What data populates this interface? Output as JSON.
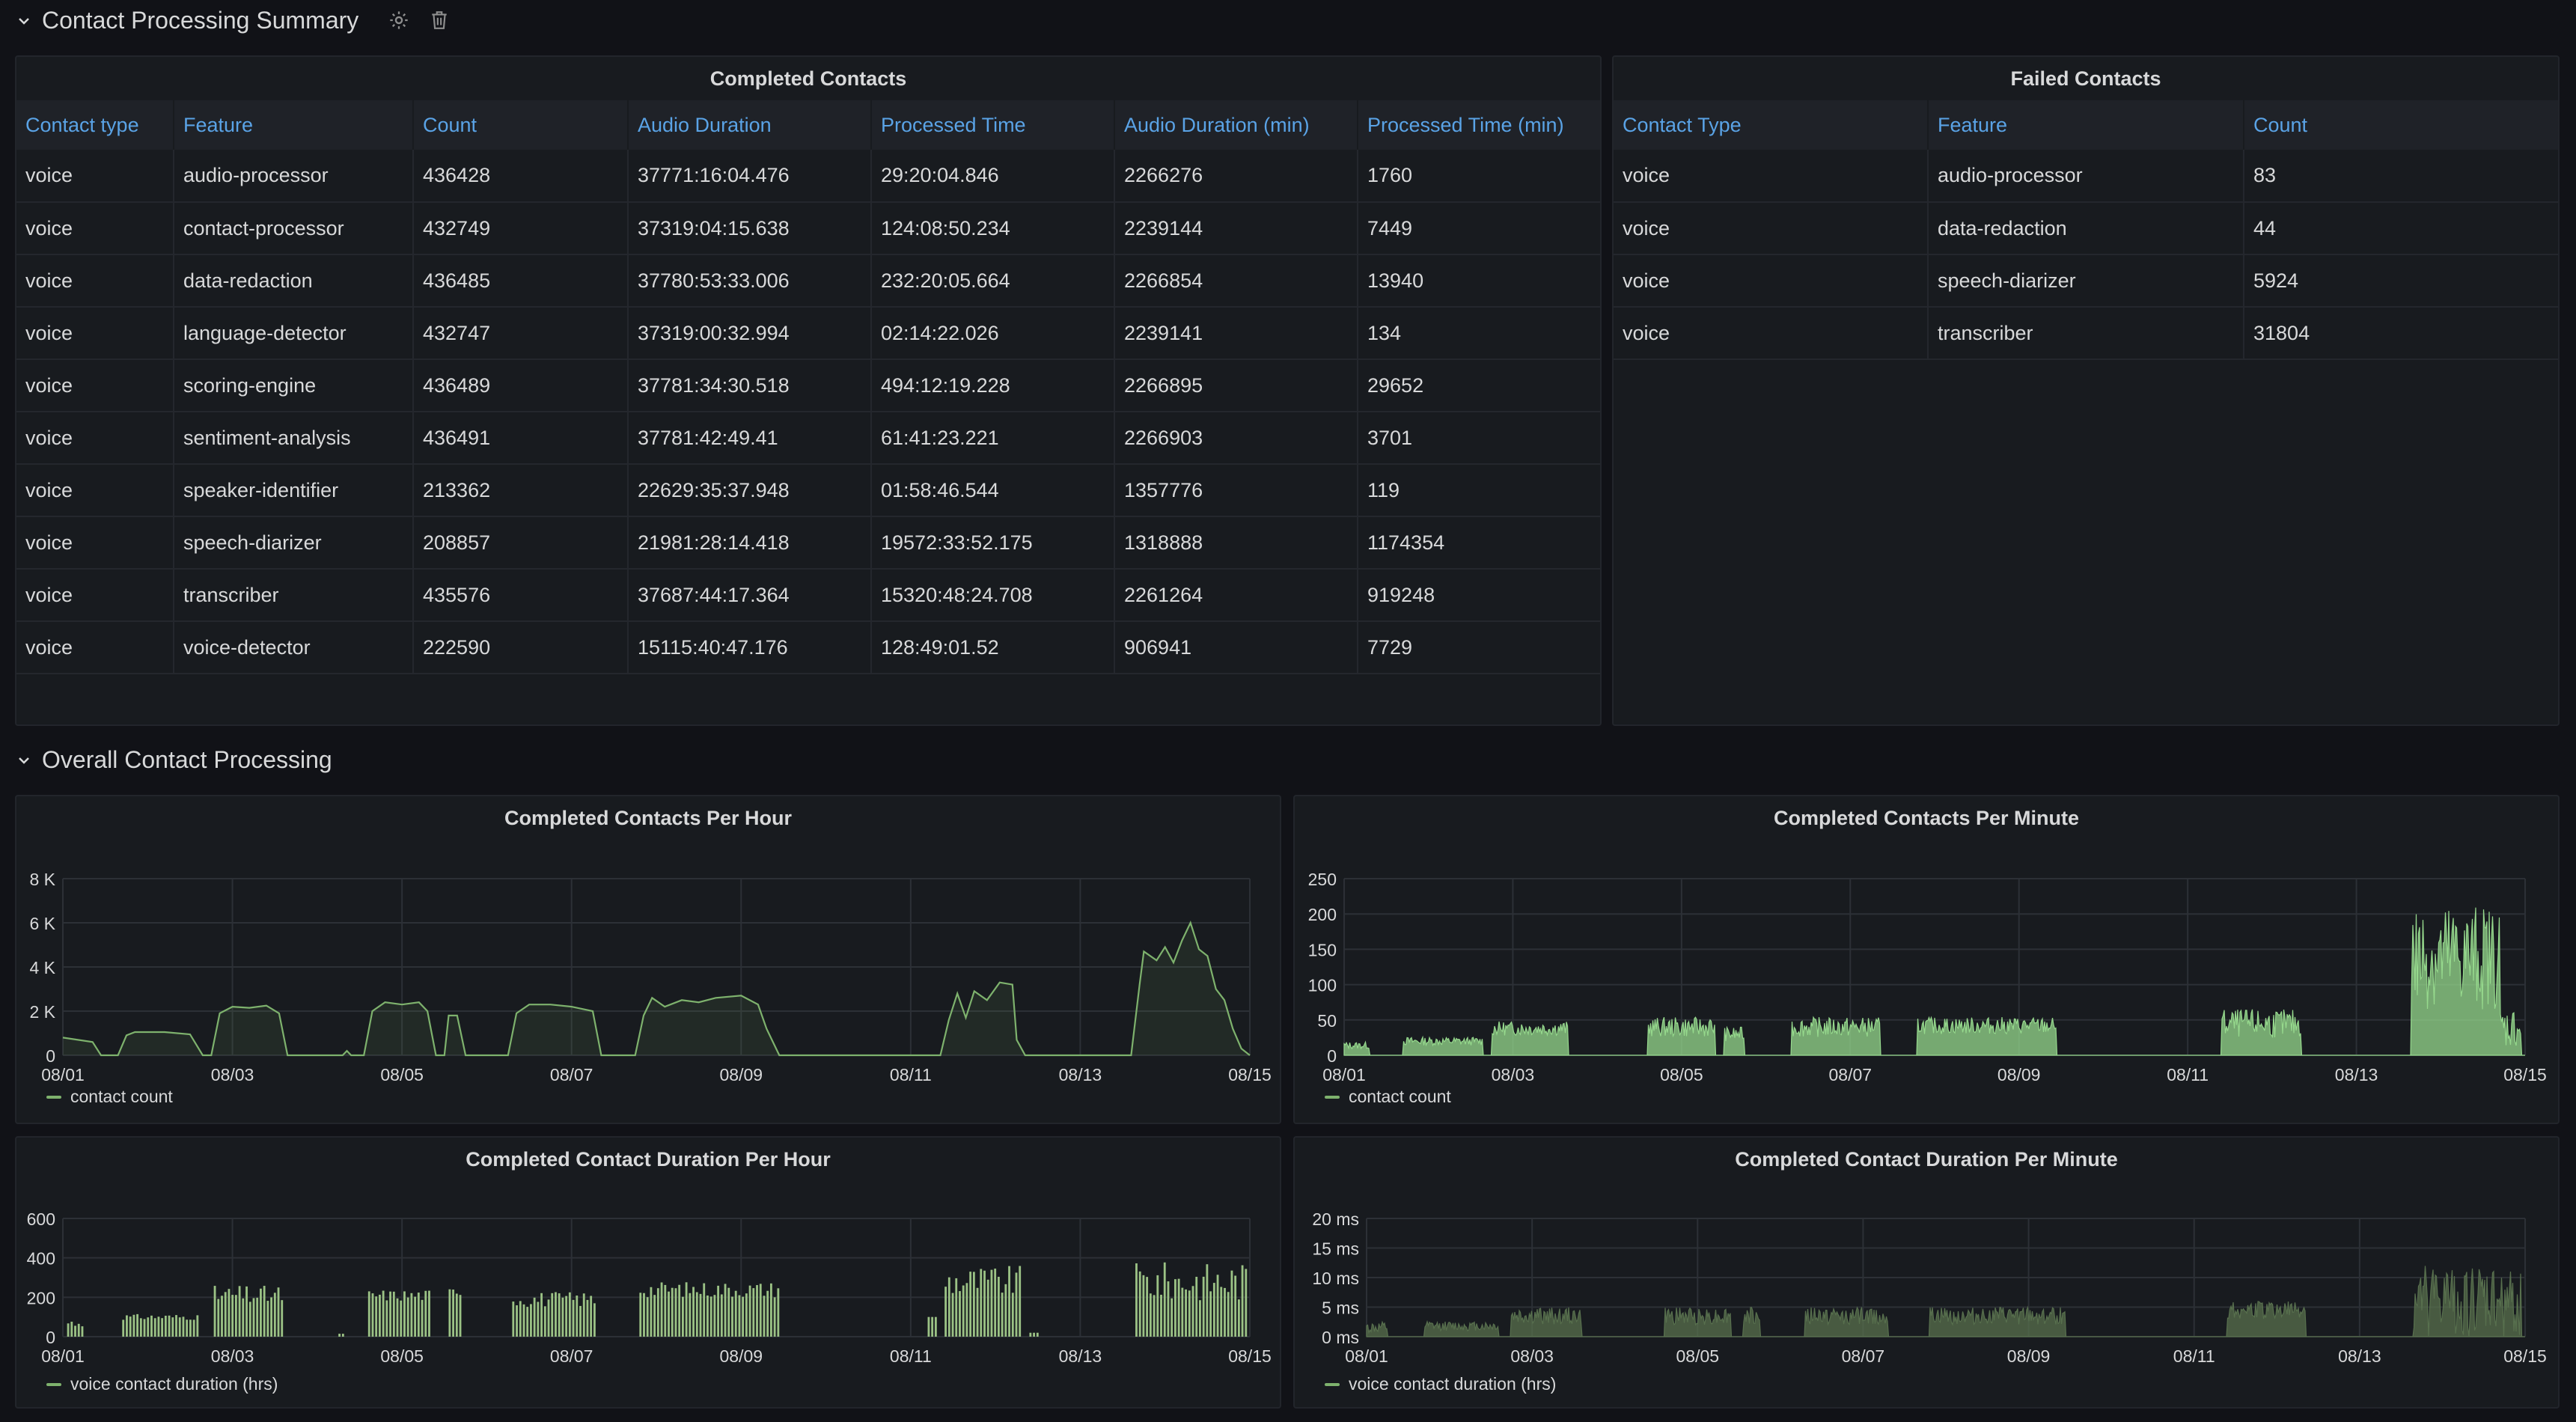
{
  "sections": {
    "summary_title": "Contact Processing Summary",
    "overall_title": "Overall Contact Processing"
  },
  "completed": {
    "title": "Completed Contacts",
    "headers": [
      "Contact type",
      "Feature",
      "Count",
      "Audio Duration",
      "Processed Time",
      "Audio Duration (min)",
      "Processed Time (min)"
    ],
    "rows": [
      [
        "voice",
        "audio-processor",
        "436428",
        "37771:16:04.476",
        "29:20:04.846",
        "2266276",
        "1760"
      ],
      [
        "voice",
        "contact-processor",
        "432749",
        "37319:04:15.638",
        "124:08:50.234",
        "2239144",
        "7449"
      ],
      [
        "voice",
        "data-redaction",
        "436485",
        "37780:53:33.006",
        "232:20:05.664",
        "2266854",
        "13940"
      ],
      [
        "voice",
        "language-detector",
        "432747",
        "37319:00:32.994",
        "02:14:22.026",
        "2239141",
        "134"
      ],
      [
        "voice",
        "scoring-engine",
        "436489",
        "37781:34:30.518",
        "494:12:19.228",
        "2266895",
        "29652"
      ],
      [
        "voice",
        "sentiment-analysis",
        "436491",
        "37781:42:49.41",
        "61:41:23.221",
        "2266903",
        "3701"
      ],
      [
        "voice",
        "speaker-identifier",
        "213362",
        "22629:35:37.948",
        "01:58:46.544",
        "1357776",
        "119"
      ],
      [
        "voice",
        "speech-diarizer",
        "208857",
        "21981:28:14.418",
        "19572:33:52.175",
        "1318888",
        "1174354"
      ],
      [
        "voice",
        "transcriber",
        "435576",
        "37687:44:17.364",
        "15320:48:24.708",
        "2261264",
        "919248"
      ],
      [
        "voice",
        "voice-detector",
        "222590",
        "15115:40:47.176",
        "128:49:01.52",
        "906941",
        "7729"
      ]
    ]
  },
  "failed": {
    "title": "Failed Contacts",
    "headers": [
      "Contact Type",
      "Feature",
      "Count"
    ],
    "rows": [
      [
        "voice",
        "audio-processor",
        "83"
      ],
      [
        "voice",
        "data-redaction",
        "44"
      ],
      [
        "voice",
        "speech-diarizer",
        "5924"
      ],
      [
        "voice",
        "transcriber",
        "31804"
      ]
    ]
  },
  "chart_data": [
    {
      "id": "cph",
      "type": "area",
      "title": "Completed Contacts Per Hour",
      "legend": "contact count",
      "ylim": [
        0,
        8000
      ],
      "yticks": [
        0,
        2000,
        4000,
        6000,
        8000
      ],
      "ytick_labels": [
        "0",
        "2 K",
        "4 K",
        "6 K",
        "8 K"
      ],
      "x_labels": [
        "08/01",
        "08/03",
        "08/05",
        "08/07",
        "08/09",
        "08/11",
        "08/13",
        "08/15"
      ],
      "xlim": [
        0,
        14
      ],
      "color": "#7eb26d",
      "points": [
        [
          0,
          800
        ],
        [
          0.35,
          600
        ],
        [
          0.45,
          0
        ],
        [
          0.65,
          0
        ],
        [
          0.75,
          900
        ],
        [
          0.85,
          1050
        ],
        [
          1.2,
          1050
        ],
        [
          1.5,
          950
        ],
        [
          1.65,
          0
        ],
        [
          1.75,
          0
        ],
        [
          1.85,
          1900
        ],
        [
          2.0,
          2200
        ],
        [
          2.2,
          2150
        ],
        [
          2.4,
          2250
        ],
        [
          2.55,
          1900
        ],
        [
          2.65,
          0
        ],
        [
          3.3,
          0
        ],
        [
          3.35,
          200
        ],
        [
          3.4,
          0
        ],
        [
          3.55,
          0
        ],
        [
          3.65,
          2000
        ],
        [
          3.8,
          2400
        ],
        [
          4.0,
          2300
        ],
        [
          4.2,
          2400
        ],
        [
          4.3,
          2000
        ],
        [
          4.4,
          0
        ],
        [
          4.5,
          0
        ],
        [
          4.55,
          1800
        ],
        [
          4.65,
          1800
        ],
        [
          4.75,
          0
        ],
        [
          5.25,
          0
        ],
        [
          5.35,
          1900
        ],
        [
          5.5,
          2300
        ],
        [
          5.75,
          2300
        ],
        [
          6.0,
          2200
        ],
        [
          6.25,
          2000
        ],
        [
          6.35,
          0
        ],
        [
          6.75,
          0
        ],
        [
          6.85,
          1800
        ],
        [
          6.95,
          2600
        ],
        [
          7.1,
          2200
        ],
        [
          7.3,
          2500
        ],
        [
          7.5,
          2400
        ],
        [
          7.7,
          2600
        ],
        [
          8.0,
          2700
        ],
        [
          8.2,
          2300
        ],
        [
          8.3,
          1200
        ],
        [
          8.45,
          0
        ],
        [
          10.35,
          0
        ],
        [
          10.45,
          1600
        ],
        [
          10.55,
          2800
        ],
        [
          10.65,
          1700
        ],
        [
          10.75,
          2900
        ],
        [
          10.9,
          2500
        ],
        [
          11.05,
          3300
        ],
        [
          11.2,
          3200
        ],
        [
          11.25,
          700
        ],
        [
          11.35,
          0
        ],
        [
          12.6,
          0
        ],
        [
          12.7,
          3200
        ],
        [
          12.75,
          4700
        ],
        [
          12.9,
          4300
        ],
        [
          13.0,
          4900
        ],
        [
          13.1,
          4200
        ],
        [
          13.2,
          5200
        ],
        [
          13.3,
          6000
        ],
        [
          13.4,
          4800
        ],
        [
          13.5,
          4500
        ],
        [
          13.6,
          3000
        ],
        [
          13.7,
          2500
        ],
        [
          13.8,
          1200
        ],
        [
          13.9,
          300
        ],
        [
          14,
          0
        ]
      ]
    },
    {
      "id": "cpm",
      "type": "area",
      "title": "Completed Contacts Per Minute",
      "legend": "contact count",
      "ylim": [
        0,
        250
      ],
      "yticks": [
        0,
        50,
        100,
        150,
        200,
        250
      ],
      "ytick_labels": [
        "0",
        "50",
        "100",
        "150",
        "200",
        "250"
      ],
      "x_labels": [
        "08/01",
        "08/03",
        "08/05",
        "08/07",
        "08/09",
        "08/11",
        "08/13",
        "08/15"
      ],
      "xlim": [
        0,
        14
      ],
      "color": "#96d98d",
      "noisy": true,
      "segments": [
        [
          0,
          0.3,
          14,
          5
        ],
        [
          0.7,
          1.65,
          20,
          6
        ],
        [
          1.75,
          2.65,
          38,
          10
        ],
        [
          3.6,
          4.4,
          40,
          14
        ],
        [
          4.5,
          4.75,
          30,
          10
        ],
        [
          5.3,
          6.35,
          40,
          14
        ],
        [
          6.8,
          8.45,
          42,
          12
        ],
        [
          10.4,
          11.35,
          45,
          20
        ],
        [
          12.65,
          13.7,
          140,
          75
        ],
        [
          13.7,
          13.95,
          40,
          30
        ]
      ]
    },
    {
      "id": "cdph",
      "type": "bar",
      "title": "Completed Contact Duration Per Hour",
      "legend": "voice contact duration (hrs)",
      "ylim": [
        0,
        600
      ],
      "yticks": [
        0,
        200,
        400,
        600
      ],
      "ytick_labels": [
        "0",
        "200",
        "400",
        "600"
      ],
      "x_labels": [
        "08/01",
        "08/03",
        "08/05",
        "08/07",
        "08/09",
        "08/11",
        "08/13",
        "08/15"
      ],
      "xlim": [
        0,
        14
      ],
      "color": "#9bc285",
      "segments": [
        [
          0.05,
          0.25,
          70,
          25
        ],
        [
          0.7,
          1.6,
          100,
          15
        ],
        [
          1.78,
          2.6,
          210,
          50
        ],
        [
          3.25,
          3.3,
          15,
          0
        ],
        [
          3.6,
          4.35,
          210,
          30
        ],
        [
          4.55,
          4.7,
          230,
          20
        ],
        [
          5.3,
          6.3,
          190,
          40
        ],
        [
          6.8,
          8.45,
          240,
          40
        ],
        [
          10.2,
          10.3,
          100,
          0
        ],
        [
          10.4,
          11.3,
          280,
          80
        ],
        [
          11.4,
          11.5,
          20,
          0
        ],
        [
          12.65,
          13.95,
          280,
          100
        ]
      ]
    },
    {
      "id": "cdpm",
      "type": "area",
      "title": "Completed Contact Duration Per Minute",
      "legend": "voice contact duration (hrs)",
      "ylim": [
        0,
        20
      ],
      "yticks": [
        0,
        5,
        10,
        15,
        20
      ],
      "ytick_labels": [
        "0 ms",
        "5 ms",
        "10 ms",
        "15 ms",
        "20 ms"
      ],
      "x_labels": [
        "08/01",
        "08/03",
        "08/05",
        "08/07",
        "08/09",
        "08/11",
        "08/13",
        "08/15"
      ],
      "xlim": [
        0,
        14
      ],
      "color": "#58704e",
      "noisy": true,
      "segments": [
        [
          0,
          0.25,
          1.5,
          1
        ],
        [
          0.7,
          1.6,
          1.8,
          0.8
        ],
        [
          1.75,
          2.6,
          3.5,
          1.5
        ],
        [
          3.6,
          4.4,
          3.5,
          1.5
        ],
        [
          4.55,
          4.75,
          3.5,
          1.5
        ],
        [
          5.3,
          6.3,
          3.5,
          1.5
        ],
        [
          6.8,
          8.45,
          3.5,
          1.5
        ],
        [
          10.4,
          11.35,
          4.5,
          1.5
        ],
        [
          12.65,
          13.95,
          6,
          6
        ]
      ]
    }
  ]
}
